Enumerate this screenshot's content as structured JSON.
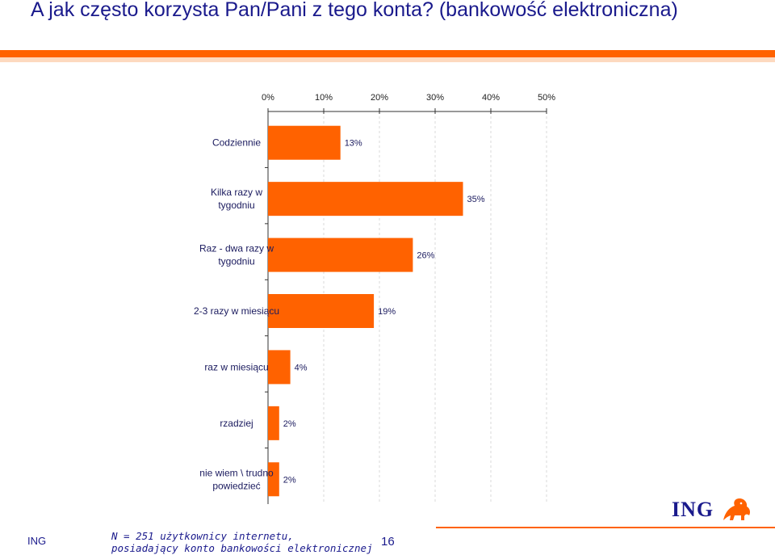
{
  "slide": {
    "title": "A jak często korzysta Pan/Pani z tego konta? (bankowość elektroniczna)",
    "footer_left": "ING",
    "footer_note": [
      "N = 251 użytkownicy internetu,",
      "posiadający konto bankowości elektronicznej"
    ],
    "page_number": "16",
    "logo_text": "ING",
    "colors": {
      "accent": "#FF6200",
      "accent_light": "#FDD9BF",
      "text": "#1A1A8C"
    }
  },
  "chart_data": {
    "type": "bar",
    "orientation": "horizontal",
    "categories": [
      [
        "Codziennie"
      ],
      [
        "Kilka razy w",
        "tygodniu"
      ],
      [
        "Raz - dwa razy w",
        "tygodniu"
      ],
      [
        "2-3 razy w miesiącu"
      ],
      [
        "raz w miesiącu"
      ],
      [
        "rzadziej"
      ],
      [
        "nie wiem \\ trudno",
        "powiedzieć"
      ]
    ],
    "values": [
      13,
      35,
      26,
      19,
      4,
      2,
      2
    ],
    "value_labels": [
      "13%",
      "35%",
      "26%",
      "19%",
      "4%",
      "2%",
      "2%"
    ],
    "xlim": [
      0,
      50
    ],
    "x_ticks": [
      "0%",
      "10%",
      "20%",
      "30%",
      "40%",
      "50%"
    ],
    "x_tick_values": [
      0,
      10,
      20,
      30,
      40,
      50
    ],
    "axis_position": "top",
    "grid": true,
    "bar_color": "#FF6200"
  }
}
